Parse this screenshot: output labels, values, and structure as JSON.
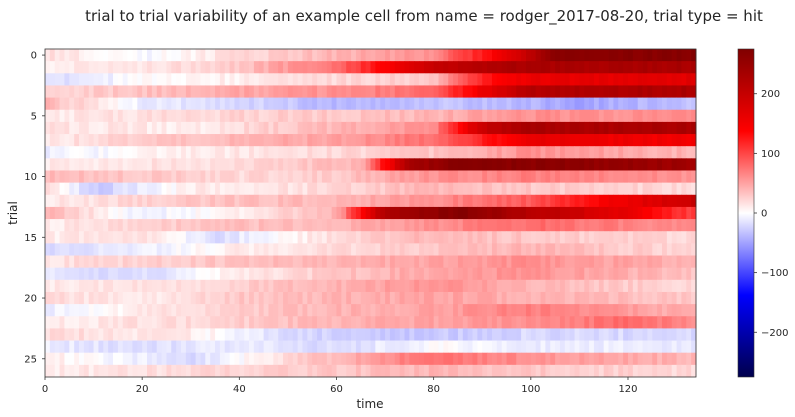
{
  "chart_data": {
    "type": "heatmap",
    "title": "trial to trial variability of an example cell from name = rodger_2017-08-20, trial type = hit",
    "xlabel": "time",
    "ylabel": "trial",
    "x_ticks": [
      0,
      20,
      40,
      60,
      80,
      100,
      120
    ],
    "y_ticks": [
      0,
      5,
      10,
      15,
      20,
      25
    ],
    "xlim": [
      0,
      134
    ],
    "n_trials": 27,
    "colorbar": {
      "colormap": "seismic",
      "vmin": -275,
      "vmax": 275,
      "ticks": [
        -200,
        -100,
        0,
        100,
        200
      ],
      "tick_labels": [
        "−200",
        "−100",
        "0",
        "100",
        "200"
      ]
    },
    "colors": {
      "low": "#00004c",
      "mid_low": "#0000ff",
      "center": "#ffffff",
      "mid_high": "#ff0000",
      "high": "#800000"
    },
    "trials": [
      {
        "trial": 0,
        "profile": [
          [
            0,
            20
          ],
          [
            20,
            -5
          ],
          [
            40,
            20
          ],
          [
            60,
            40
          ],
          [
            80,
            60
          ],
          [
            95,
            160
          ],
          [
            105,
            260
          ],
          [
            134,
            270
          ]
        ]
      },
      {
        "trial": 1,
        "profile": [
          [
            0,
            10
          ],
          [
            20,
            15
          ],
          [
            40,
            30
          ],
          [
            60,
            80
          ],
          [
            70,
            140
          ],
          [
            80,
            200
          ],
          [
            95,
            230
          ],
          [
            134,
            230
          ]
        ]
      },
      {
        "trial": 2,
        "profile": [
          [
            0,
            -20
          ],
          [
            20,
            0
          ],
          [
            40,
            10
          ],
          [
            60,
            20
          ],
          [
            80,
            30
          ],
          [
            90,
            120
          ],
          [
            100,
            160
          ],
          [
            134,
            170
          ]
        ]
      },
      {
        "trial": 3,
        "profile": [
          [
            0,
            20
          ],
          [
            30,
            40
          ],
          [
            60,
            60
          ],
          [
            80,
            80
          ],
          [
            90,
            160
          ],
          [
            100,
            220
          ],
          [
            134,
            230
          ]
        ]
      },
      {
        "trial": 4,
        "profile": [
          [
            0,
            40
          ],
          [
            20,
            -10
          ],
          [
            40,
            -20
          ],
          [
            60,
            -40
          ],
          [
            80,
            -30
          ],
          [
            100,
            -40
          ],
          [
            110,
            -50
          ],
          [
            134,
            -30
          ]
        ]
      },
      {
        "trial": 5,
        "profile": [
          [
            0,
            10
          ],
          [
            30,
            20
          ],
          [
            60,
            30
          ],
          [
            80,
            40
          ],
          [
            100,
            60
          ],
          [
            134,
            60
          ]
        ]
      },
      {
        "trial": 6,
        "profile": [
          [
            0,
            15
          ],
          [
            30,
            10
          ],
          [
            60,
            40
          ],
          [
            80,
            60
          ],
          [
            90,
            200
          ],
          [
            100,
            230
          ],
          [
            134,
            230
          ]
        ]
      },
      {
        "trial": 7,
        "profile": [
          [
            0,
            10
          ],
          [
            20,
            30
          ],
          [
            40,
            40
          ],
          [
            60,
            50
          ],
          [
            80,
            80
          ],
          [
            100,
            160
          ],
          [
            134,
            150
          ]
        ]
      },
      {
        "trial": 8,
        "profile": [
          [
            0,
            -10
          ],
          [
            30,
            10
          ],
          [
            60,
            20
          ],
          [
            80,
            30
          ],
          [
            100,
            60
          ],
          [
            134,
            40
          ]
        ]
      },
      {
        "trial": 9,
        "profile": [
          [
            0,
            10
          ],
          [
            40,
            20
          ],
          [
            65,
            40
          ],
          [
            75,
            230
          ],
          [
            85,
            270
          ],
          [
            110,
            260
          ],
          [
            134,
            240
          ]
        ]
      },
      {
        "trial": 10,
        "profile": [
          [
            0,
            40
          ],
          [
            20,
            30
          ],
          [
            40,
            20
          ],
          [
            60,
            30
          ],
          [
            80,
            60
          ],
          [
            100,
            70
          ],
          [
            134,
            60
          ]
        ]
      },
      {
        "trial": 11,
        "profile": [
          [
            0,
            20
          ],
          [
            10,
            -30
          ],
          [
            30,
            10
          ],
          [
            60,
            20
          ],
          [
            80,
            40
          ],
          [
            100,
            30
          ],
          [
            134,
            20
          ]
        ]
      },
      {
        "trial": 12,
        "profile": [
          [
            0,
            10
          ],
          [
            30,
            30
          ],
          [
            60,
            40
          ],
          [
            80,
            60
          ],
          [
            100,
            90
          ],
          [
            120,
            160
          ],
          [
            134,
            200
          ]
        ]
      },
      {
        "trial": 13,
        "profile": [
          [
            0,
            40
          ],
          [
            20,
            -10
          ],
          [
            40,
            10
          ],
          [
            60,
            40
          ],
          [
            70,
            230
          ],
          [
            85,
            270
          ],
          [
            100,
            220
          ],
          [
            120,
            160
          ],
          [
            134,
            100
          ]
        ]
      },
      {
        "trial": 14,
        "profile": [
          [
            0,
            10
          ],
          [
            30,
            30
          ],
          [
            60,
            40
          ],
          [
            80,
            60
          ],
          [
            100,
            80
          ],
          [
            134,
            60
          ]
        ]
      },
      {
        "trial": 15,
        "profile": [
          [
            0,
            10
          ],
          [
            20,
            20
          ],
          [
            35,
            -20
          ],
          [
            60,
            20
          ],
          [
            80,
            40
          ],
          [
            100,
            30
          ],
          [
            134,
            20
          ]
        ]
      },
      {
        "trial": 16,
        "profile": [
          [
            0,
            -20
          ],
          [
            20,
            -10
          ],
          [
            40,
            10
          ],
          [
            60,
            20
          ],
          [
            80,
            30
          ],
          [
            100,
            40
          ],
          [
            134,
            20
          ]
        ]
      },
      {
        "trial": 17,
        "profile": [
          [
            0,
            15
          ],
          [
            30,
            30
          ],
          [
            60,
            40
          ],
          [
            80,
            50
          ],
          [
            100,
            60
          ],
          [
            134,
            40
          ]
        ]
      },
      {
        "trial": 18,
        "profile": [
          [
            0,
            -15
          ],
          [
            20,
            -20
          ],
          [
            40,
            10
          ],
          [
            60,
            30
          ],
          [
            80,
            50
          ],
          [
            100,
            60
          ],
          [
            134,
            30
          ]
        ]
      },
      {
        "trial": 19,
        "profile": [
          [
            0,
            10
          ],
          [
            30,
            20
          ],
          [
            60,
            40
          ],
          [
            80,
            60
          ],
          [
            100,
            40
          ],
          [
            134,
            20
          ]
        ]
      },
      {
        "trial": 20,
        "profile": [
          [
            0,
            20
          ],
          [
            20,
            10
          ],
          [
            40,
            30
          ],
          [
            60,
            40
          ],
          [
            80,
            50
          ],
          [
            134,
            30
          ]
        ]
      },
      {
        "trial": 21,
        "profile": [
          [
            0,
            -10
          ],
          [
            30,
            20
          ],
          [
            60,
            40
          ],
          [
            80,
            50
          ],
          [
            100,
            70
          ],
          [
            134,
            40
          ]
        ]
      },
      {
        "trial": 22,
        "profile": [
          [
            0,
            10
          ],
          [
            30,
            20
          ],
          [
            60,
            40
          ],
          [
            80,
            50
          ],
          [
            100,
            60
          ],
          [
            120,
            80
          ],
          [
            134,
            60
          ]
        ]
      },
      {
        "trial": 23,
        "profile": [
          [
            0,
            20
          ],
          [
            30,
            10
          ],
          [
            50,
            -20
          ],
          [
            80,
            -30
          ],
          [
            100,
            -20
          ],
          [
            134,
            -20
          ]
        ]
      },
      {
        "trial": 24,
        "profile": [
          [
            0,
            -10
          ],
          [
            20,
            -20
          ],
          [
            40,
            -10
          ],
          [
            60,
            -20
          ],
          [
            80,
            0
          ],
          [
            100,
            -10
          ],
          [
            134,
            -10
          ]
        ]
      },
      {
        "trial": 25,
        "profile": [
          [
            0,
            10
          ],
          [
            30,
            -20
          ],
          [
            50,
            20
          ],
          [
            80,
            80
          ],
          [
            100,
            60
          ],
          [
            134,
            40
          ]
        ]
      },
      {
        "trial": 26,
        "profile": [
          [
            0,
            10
          ],
          [
            30,
            20
          ],
          [
            60,
            30
          ],
          [
            80,
            40
          ],
          [
            100,
            30
          ],
          [
            134,
            20
          ]
        ]
      }
    ]
  }
}
